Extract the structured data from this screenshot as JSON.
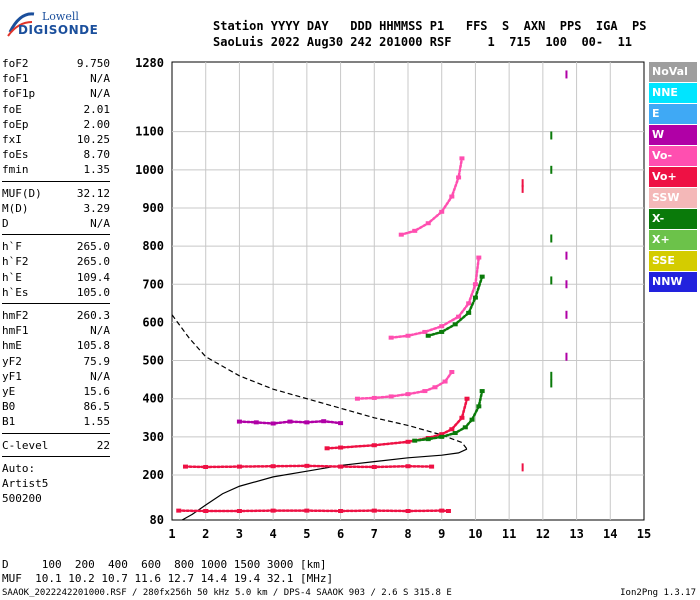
{
  "logo": {
    "line1": "Lowell",
    "line2": "DIGISONDE"
  },
  "header": {
    "line1": "Station YYYY DAY   DDD HHMMSS P1   FFS  S  AXN  PPS  IGA  PS",
    "line2": "SaoLuis 2022 Aug30 242 201000 RSF     1  715  100  00-  11"
  },
  "params": {
    "groups": [
      [
        [
          "foF2",
          "9.750"
        ],
        [
          "foF1",
          "N/A"
        ],
        [
          "foF1p",
          "N/A"
        ],
        [
          "foE",
          "2.01"
        ],
        [
          "foEp",
          "2.00"
        ],
        [
          "fxI",
          "10.25"
        ],
        [
          "foEs",
          "8.70"
        ],
        [
          "fmin",
          "1.35"
        ]
      ],
      [
        [
          "MUF(D)",
          "32.12"
        ],
        [
          "M(D)",
          "3.29"
        ],
        [
          "D",
          "N/A"
        ]
      ],
      [
        [
          "h`F",
          "265.0"
        ],
        [
          "h`F2",
          "265.0"
        ],
        [
          "h`E",
          "109.4"
        ],
        [
          "h`Es",
          "105.0"
        ]
      ],
      [
        [
          "hmF2",
          "260.3"
        ],
        [
          "hmF1",
          "N/A"
        ],
        [
          "hmE",
          "105.8"
        ],
        [
          "yF2",
          "75.9"
        ],
        [
          "yF1",
          "N/A"
        ],
        [
          "yE",
          "15.6"
        ],
        [
          "B0",
          "86.5"
        ],
        [
          "B1",
          "1.55"
        ]
      ],
      [
        [
          "C-level",
          "22"
        ]
      ],
      [
        [
          "Auto:",
          ""
        ],
        [
          "Artist5",
          ""
        ],
        [
          "500200",
          ""
        ]
      ]
    ]
  },
  "legend": [
    {
      "label": "NoVal",
      "color": "#9e9e9e"
    },
    {
      "label": "NNE",
      "color": "#00e5ff"
    },
    {
      "label": "E",
      "color": "#3fa9f5"
    },
    {
      "label": "W",
      "color": "#b000a6"
    },
    {
      "label": "Vo-",
      "color": "#ff4fb0"
    },
    {
      "label": "Vo+",
      "color": "#ee1144"
    },
    {
      "label": "SSW",
      "color": "#f4b8b8"
    },
    {
      "label": "X-",
      "color": "#0a7a0a"
    },
    {
      "label": "X+",
      "color": "#6cc24a"
    },
    {
      "label": "SSE",
      "color": "#d4cc00"
    },
    {
      "label": "NNW",
      "color": "#2222dd"
    }
  ],
  "footer": {
    "line1": "D     100  200  400  600  800 1000 1500 3000 [km]",
    "line2": "MUF  10.1 10.2 10.7 11.6 12.7 14.4 19.4 32.1 [MHz]",
    "file": "SAAOK_2022242201000.RSF / 280fx256h 50 kHz 5.0 km / DPS-4 SAAOK 903 / 2.6 S 315.8 E",
    "version": "Ion2Png 1.3.17"
  },
  "chart_data": {
    "type": "scatter",
    "xlim": [
      1,
      15
    ],
    "ylim": [
      80,
      1280
    ],
    "xticks": [
      "1",
      "2",
      "3",
      "4",
      "5",
      "6",
      "7",
      "8",
      "9",
      "10",
      "11",
      "12",
      "13",
      "14",
      "15"
    ],
    "yticks": [
      "80",
      "200",
      "300",
      "400",
      "500",
      "600",
      "700",
      "800",
      "900",
      "1000",
      "1100",
      "1280"
    ],
    "grid": true,
    "traces": [
      {
        "name": "Es",
        "color": "#ee1144",
        "x": [
          1.4,
          2.0,
          3.0,
          4.0,
          5.0,
          6.0,
          7.0,
          8.0,
          8.7
        ],
        "y": [
          222,
          221,
          222,
          223,
          224,
          222,
          221,
          223,
          222
        ]
      },
      {
        "name": "E-low",
        "color": "#ee1144",
        "x": [
          1.2,
          2.0,
          3.0,
          4.0,
          5.0,
          6.0,
          7.0,
          8.0,
          9.0,
          9.2
        ],
        "y": [
          105,
          104,
          104,
          105,
          105,
          104,
          105,
          104,
          105,
          104
        ]
      },
      {
        "name": "F-O",
        "color": "#ee1144",
        "x": [
          5.6,
          6.0,
          7.0,
          8.0,
          8.6,
          9.0,
          9.3,
          9.6,
          9.75
        ],
        "y": [
          270,
          272,
          278,
          287,
          297,
          307,
          320,
          350,
          400
        ]
      },
      {
        "name": "F-X",
        "color": "#0a7a0a",
        "x": [
          8.2,
          8.6,
          9.0,
          9.4,
          9.7,
          9.9,
          10.1,
          10.2
        ],
        "y": [
          290,
          294,
          300,
          310,
          325,
          345,
          380,
          420
        ]
      },
      {
        "name": "F-2hop",
        "color": "#ff4fb0",
        "x": [
          6.5,
          7.0,
          7.5,
          8.0,
          8.5,
          8.8,
          9.1,
          9.3
        ],
        "y": [
          400,
          402,
          406,
          412,
          420,
          430,
          445,
          470
        ]
      },
      {
        "name": "F-3hop",
        "color": "#ff4fb0",
        "x": [
          7.5,
          8.0,
          8.5,
          9.0,
          9.5,
          9.8,
          10.0,
          10.1
        ],
        "y": [
          560,
          565,
          575,
          590,
          615,
          650,
          700,
          770
        ]
      },
      {
        "name": "F-4hop",
        "color": "#ff4fb0",
        "x": [
          7.8,
          8.2,
          8.6,
          9.0,
          9.3,
          9.5,
          9.6
        ],
        "y": [
          830,
          840,
          860,
          890,
          930,
          980,
          1030
        ]
      },
      {
        "name": "F-3hop-X",
        "color": "#0a7a0a",
        "x": [
          8.6,
          9.0,
          9.4,
          9.8,
          10.0,
          10.2
        ],
        "y": [
          565,
          575,
          595,
          625,
          665,
          720
        ]
      },
      {
        "name": "Es-multi",
        "color": "#b000a6",
        "x": [
          3.0,
          3.5,
          4.0,
          4.5,
          5.0,
          5.5,
          6.0
        ],
        "y": [
          340,
          338,
          335,
          340,
          338,
          341,
          336
        ]
      },
      {
        "name": "vert-13",
        "color": "#b000a6",
        "x": [
          12.7,
          12.7,
          12.7,
          12.7,
          12.7
        ],
        "y": [
          1250,
          775,
          700,
          620,
          510
        ]
      },
      {
        "name": "vert-12",
        "color": "#0a7a0a",
        "x": [
          12.25,
          12.25,
          12.25,
          12.25,
          12.25,
          12.25
        ],
        "y": [
          1090,
          1000,
          820,
          710,
          460,
          440
        ]
      },
      {
        "name": "vert-11",
        "color": "#ee1144",
        "x": [
          11.4,
          11.4,
          11.4
        ],
        "y": [
          965,
          950,
          220
        ]
      }
    ],
    "profile": {
      "solid": {
        "x": [
          1.3,
          1.6,
          2.0,
          2.5,
          3.0,
          4.0,
          5.0,
          6.0,
          7.0,
          8.0,
          9.0,
          9.5,
          9.75
        ],
        "y": [
          80,
          95,
          120,
          150,
          170,
          195,
          210,
          225,
          235,
          245,
          252,
          258,
          268
        ]
      },
      "dashed": {
        "x": [
          1.0,
          1.5,
          2.0,
          3.0,
          4.0,
          5.0,
          6.0,
          7.0,
          8.0,
          9.0,
          9.6,
          9.75
        ],
        "y": [
          620,
          560,
          510,
          460,
          425,
          400,
          375,
          350,
          330,
          305,
          285,
          268
        ]
      }
    }
  }
}
